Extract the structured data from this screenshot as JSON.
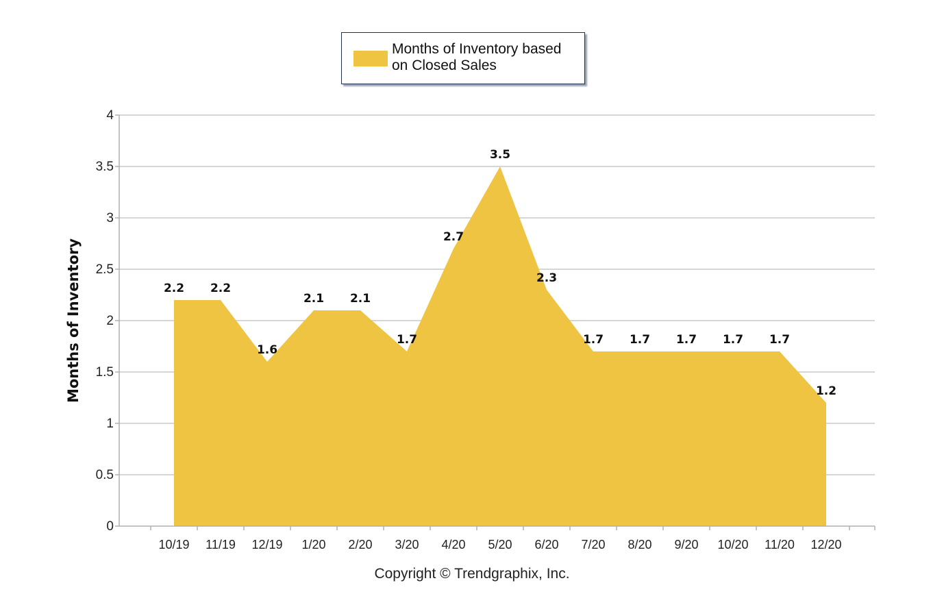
{
  "chart_data": {
    "type": "area",
    "categories": [
      "10/19",
      "11/19",
      "12/19",
      "1/20",
      "2/20",
      "3/20",
      "4/20",
      "5/20",
      "6/20",
      "7/20",
      "8/20",
      "9/20",
      "10/20",
      "11/20",
      "12/20"
    ],
    "series": [
      {
        "name": "Months of Inventory based on Closed Sales",
        "values": [
          2.2,
          2.2,
          1.6,
          2.1,
          2.1,
          1.7,
          2.7,
          3.5,
          2.3,
          1.7,
          1.7,
          1.7,
          1.7,
          1.7,
          1.2
        ],
        "color": "#efc443"
      }
    ],
    "data_labels": [
      "2.2",
      "2.2",
      "1.6",
      "2.1",
      "2.1",
      "1.7",
      "2.7",
      "3.5",
      "2.3",
      "1.7",
      "1.7",
      "1.7",
      "1.7",
      "1.7",
      "1.2"
    ],
    "ylabel": "Months of Inventory",
    "ylim": [
      0,
      4
    ],
    "yticks": [
      "0",
      "0.5",
      "1",
      "1.5",
      "2",
      "2.5",
      "3",
      "3.5",
      "4"
    ],
    "grid": true,
    "legend_position": "top-center"
  },
  "legend": {
    "label": "Months of Inventory based on Closed Sales",
    "color": "#efc443"
  },
  "footer": {
    "copyright": "Copyright © Trendgraphix, Inc."
  }
}
